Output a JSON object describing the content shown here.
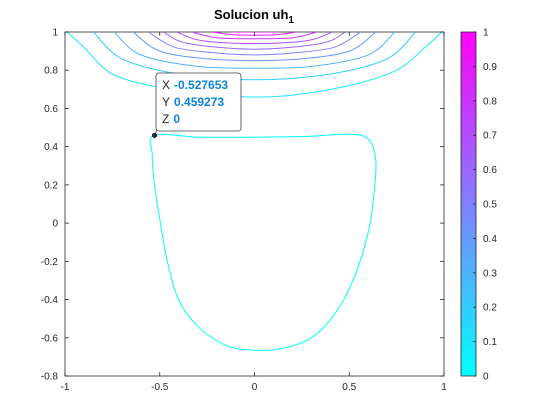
{
  "chart_data": {
    "type": "contour",
    "title": "Solucion uh",
    "title_subscript": "1",
    "xlim": [
      -1,
      1
    ],
    "ylim": [
      -0.8,
      1
    ],
    "x_ticks": [
      "-1",
      "-0.5",
      "0",
      "0.5",
      "1"
    ],
    "y_ticks": [
      "-0.8",
      "-0.6",
      "-0.4",
      "-0.2",
      "0",
      "0.2",
      "0.4",
      "0.6",
      "0.8",
      "1"
    ],
    "x_tick_values": [
      -1,
      -0.5,
      0,
      0.5,
      1
    ],
    "y_tick_values": [
      -0.8,
      -0.6,
      -0.4,
      -0.2,
      0,
      0.2,
      0.4,
      0.6,
      0.8,
      1
    ],
    "colormap": "cool",
    "colormap_start": "#00ffff",
    "colormap_end": "#ff00ff",
    "colorbar": {
      "limits": [
        0,
        1
      ],
      "ticks": [
        "0",
        "0.1",
        "0.2",
        "0.3",
        "0.4",
        "0.5",
        "0.6",
        "0.7",
        "0.8",
        "0.9",
        "1"
      ],
      "tick_values": [
        0,
        0.1,
        0.2,
        0.3,
        0.4,
        0.5,
        0.6,
        0.7,
        0.8,
        0.9,
        1
      ]
    },
    "contour_levels": [
      0,
      0.1,
      0.2,
      0.3,
      0.4,
      0.5,
      0.6,
      0.7,
      0.8,
      0.9,
      1
    ],
    "zero_contour": [
      [
        -0.53,
        0.46
      ],
      [
        -0.3,
        0.45
      ],
      [
        0,
        0.45
      ],
      [
        0.3,
        0.455
      ],
      [
        0.5,
        0.465
      ],
      [
        0.6,
        0.44
      ],
      [
        0.64,
        0.33
      ],
      [
        0.63,
        0.15
      ],
      [
        0.6,
        -0.05
      ],
      [
        0.52,
        -0.3
      ],
      [
        0.42,
        -0.48
      ],
      [
        0.3,
        -0.6
      ],
      [
        0.15,
        -0.655
      ],
      [
        0,
        -0.665
      ],
      [
        -0.15,
        -0.64
      ],
      [
        -0.3,
        -0.54
      ],
      [
        -0.4,
        -0.4
      ],
      [
        -0.46,
        -0.2
      ],
      [
        -0.5,
        0.02
      ],
      [
        -0.53,
        0.22
      ],
      [
        -0.54,
        0.36
      ],
      [
        -0.53,
        0.46
      ]
    ],
    "top_contours": [
      {
        "level": 0.1,
        "points": [
          [
            -0.99,
            1.0
          ],
          [
            -0.9,
            0.92
          ],
          [
            -0.75,
            0.78
          ],
          [
            -0.5,
            0.71
          ],
          [
            -0.2,
            0.67
          ],
          [
            0,
            0.66
          ],
          [
            0.2,
            0.67
          ],
          [
            0.5,
            0.72
          ],
          [
            0.75,
            0.8
          ],
          [
            0.9,
            0.92
          ],
          [
            0.99,
            1.0
          ]
        ]
      },
      {
        "level": 0.2,
        "points": [
          [
            -0.85,
            1.0
          ],
          [
            -0.7,
            0.86
          ],
          [
            -0.4,
            0.78
          ],
          [
            0,
            0.75
          ],
          [
            0.4,
            0.78
          ],
          [
            0.7,
            0.86
          ],
          [
            0.85,
            1.0
          ]
        ]
      },
      {
        "level": 0.3,
        "points": [
          [
            -0.74,
            1.0
          ],
          [
            -0.6,
            0.88
          ],
          [
            -0.3,
            0.82
          ],
          [
            0,
            0.81
          ],
          [
            0.3,
            0.82
          ],
          [
            0.6,
            0.88
          ],
          [
            0.74,
            1.0
          ]
        ]
      },
      {
        "level": 0.4,
        "points": [
          [
            -0.64,
            1.0
          ],
          [
            -0.5,
            0.9
          ],
          [
            -0.25,
            0.86
          ],
          [
            0,
            0.85
          ],
          [
            0.25,
            0.86
          ],
          [
            0.5,
            0.9
          ],
          [
            0.64,
            1.0
          ]
        ]
      },
      {
        "level": 0.5,
        "points": [
          [
            -0.56,
            1.0
          ],
          [
            -0.42,
            0.92
          ],
          [
            -0.2,
            0.89
          ],
          [
            0,
            0.88
          ],
          [
            0.2,
            0.89
          ],
          [
            0.42,
            0.92
          ],
          [
            0.56,
            1.0
          ]
        ]
      },
      {
        "level": 0.6,
        "points": [
          [
            -0.48,
            1.0
          ],
          [
            -0.35,
            0.94
          ],
          [
            0,
            0.91
          ],
          [
            0.35,
            0.94
          ],
          [
            0.48,
            1.0
          ]
        ]
      },
      {
        "level": 0.7,
        "points": [
          [
            -0.41,
            1.0
          ],
          [
            -0.28,
            0.955
          ],
          [
            0,
            0.94
          ],
          [
            0.28,
            0.955
          ],
          [
            0.41,
            1.0
          ]
        ]
      },
      {
        "level": 0.8,
        "points": [
          [
            -0.33,
            1.0
          ],
          [
            -0.2,
            0.97
          ],
          [
            0,
            0.965
          ],
          [
            0.2,
            0.97
          ],
          [
            0.33,
            1.0
          ]
        ]
      },
      {
        "level": 0.9,
        "points": [
          [
            -0.22,
            1.0
          ],
          [
            -0.1,
            0.985
          ],
          [
            0.1,
            0.985
          ],
          [
            0.22,
            1.0
          ]
        ]
      },
      {
        "level": 1.0,
        "points": [
          [
            -0.12,
            1.0
          ],
          [
            0.12,
            1.0
          ]
        ]
      }
    ],
    "datatip": {
      "x_point": -0.527653,
      "y_point": 0.459273,
      "x_label": "X",
      "x_value": "-0.527653",
      "y_label": "Y",
      "y_value": "0.459273",
      "z_label": "Z",
      "z_value": "0"
    }
  }
}
